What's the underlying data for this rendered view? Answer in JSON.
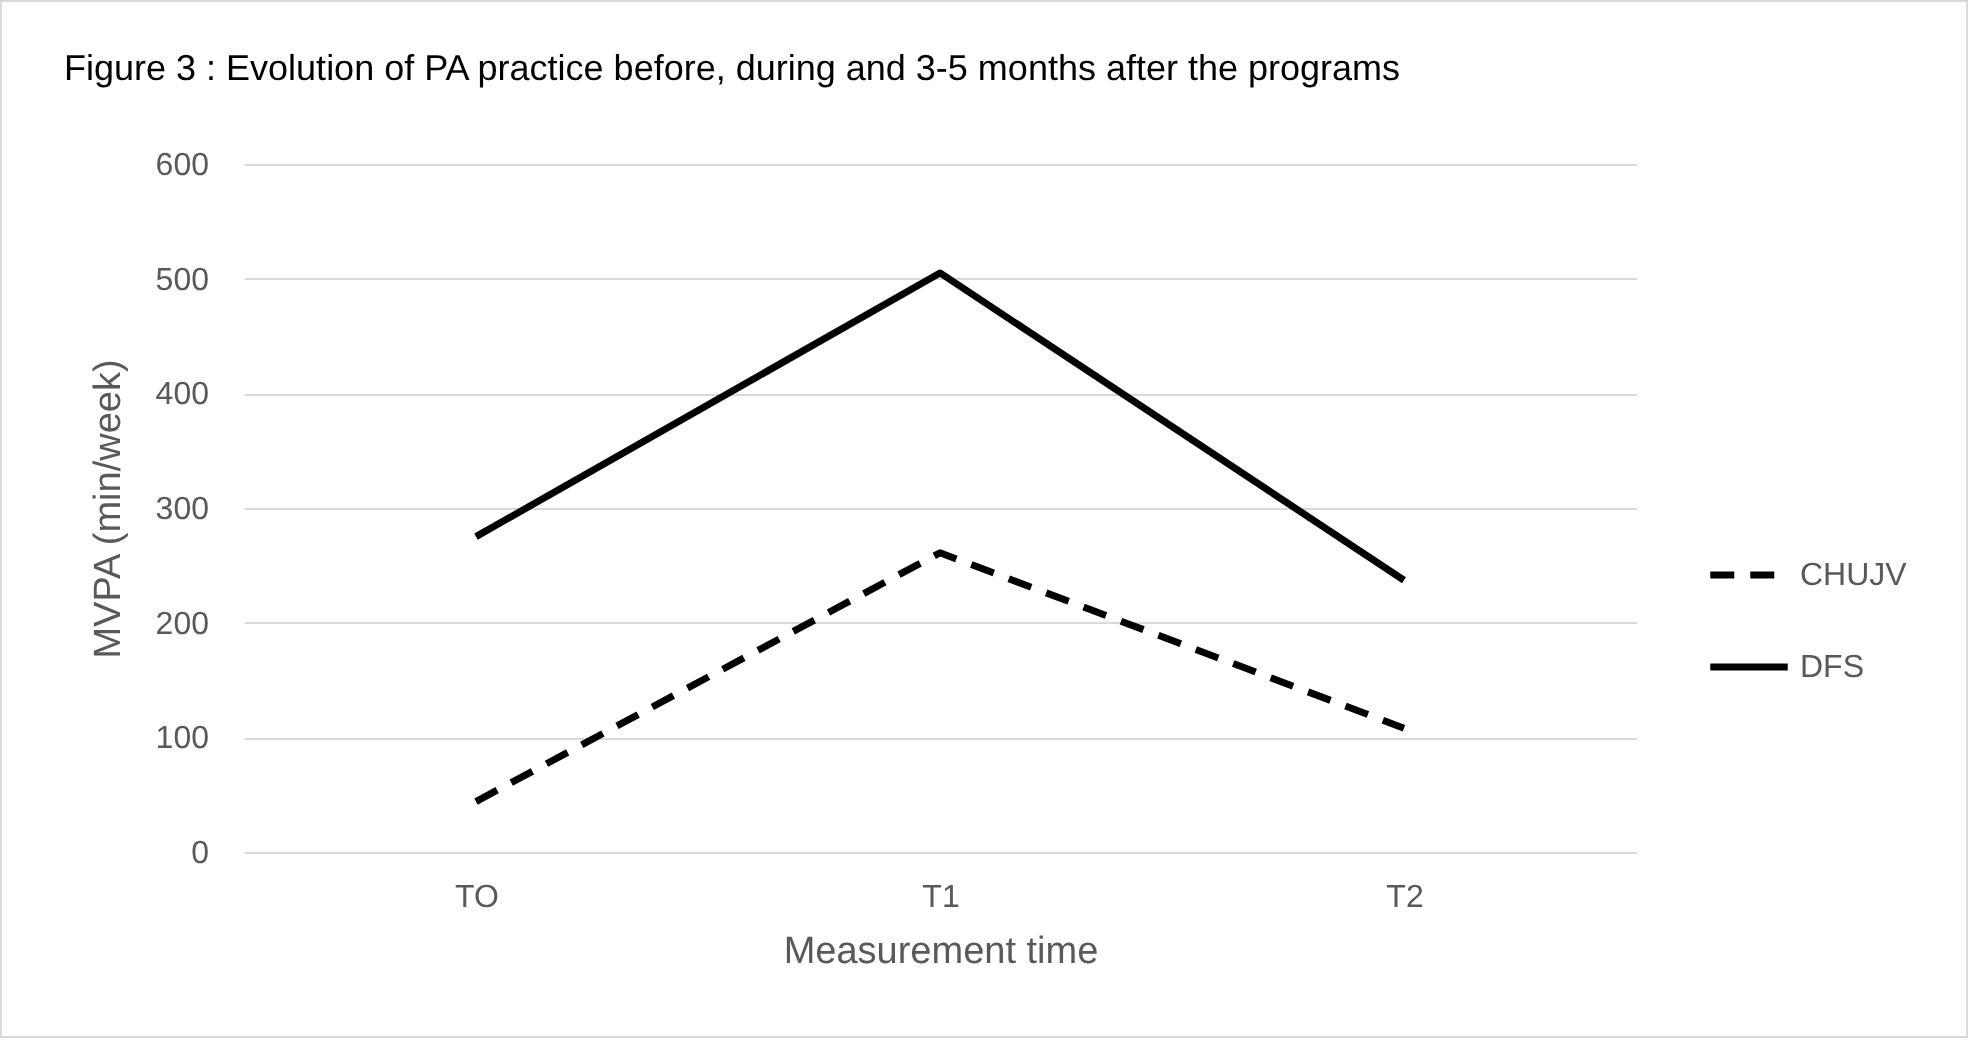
{
  "chart_data": {
    "type": "line",
    "title": "Figure 3 : Evolution of PA practice before, during and 3-5 months after the programs",
    "xlabel": "Measurement time",
    "ylabel": "MVPA (min/week)",
    "categories": [
      "TO",
      "T1",
      "T2"
    ],
    "series": [
      {
        "name": "CHUJV",
        "color": "#000000",
        "line_style": "dashed",
        "values": [
          44,
          261,
          108
        ]
      },
      {
        "name": "DFS",
        "color": "#000000",
        "line_style": "solid",
        "values": [
          275,
          505,
          237
        ]
      }
    ],
    "ylim": [
      0,
      600
    ],
    "yticks": [
      0,
      100,
      200,
      300,
      400,
      500,
      600
    ],
    "grid": "y",
    "legend": "right",
    "marker": "none"
  }
}
